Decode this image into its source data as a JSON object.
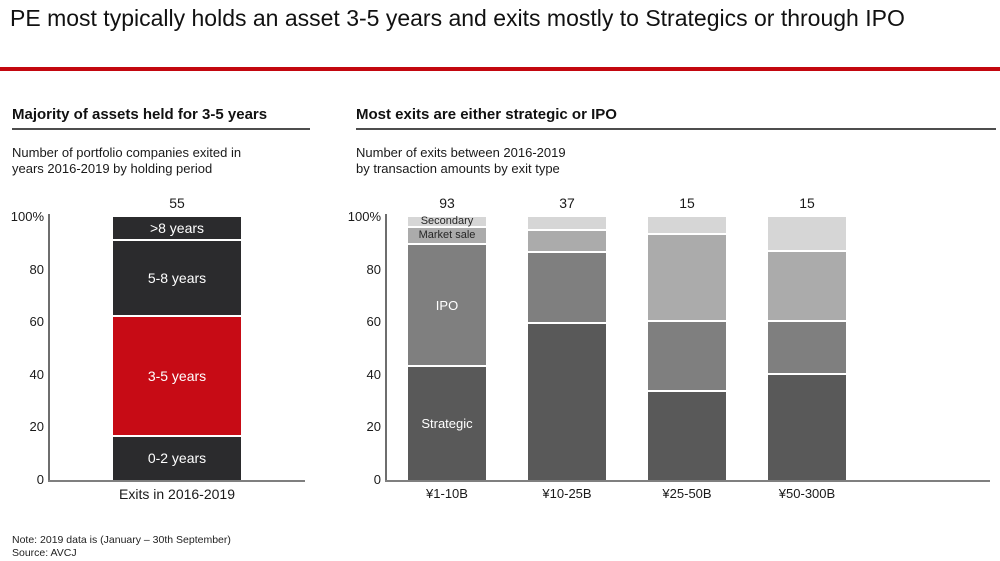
{
  "page": {
    "title": "PE most typically holds an asset 3-5 years and exits mostly to Strategics or through IPO",
    "accent_red": "#c3070f",
    "note": "Note: 2019 data is (January – 30th September)",
    "source": "Source: AVCJ"
  },
  "chart_data": [
    {
      "type": "bar",
      "stacked": true,
      "title": "Majority of assets held for 3-5 years",
      "subtitle_lines": [
        "Number of portfolio companies exited in",
        "years 2016-2019 by holding period"
      ],
      "xlabel": "",
      "ylabel": "",
      "ylim": [
        0,
        100
      ],
      "yticks": [
        "100%",
        "80",
        "60",
        "40",
        "20",
        "0"
      ],
      "grid": false,
      "legend_position": "labels-inside-bar",
      "categories": [
        "Exits in 2016-2019"
      ],
      "total_labels": [
        "55"
      ],
      "series": [
        {
          "name": "0-2 years",
          "values_pct": [
            16.4
          ],
          "color": "#2b2b2d",
          "label_color": "#ffffff"
        },
        {
          "name": "3-5 years",
          "values_pct": [
            45.4
          ],
          "color": "#c70b15",
          "label_color": "#ffffff"
        },
        {
          "name": "5-8 years",
          "values_pct": [
            29.1
          ],
          "color": "#2b2b2d",
          "label_color": "#ffffff"
        },
        {
          "name": ">8 years",
          "values_pct": [
            9.1
          ],
          "color": "#2b2b2d",
          "label_color": "#ffffff"
        }
      ]
    },
    {
      "type": "bar",
      "stacked": true,
      "title": "Most exits are either strategic or IPO",
      "subtitle_lines": [
        "Number of exits between 2016-2019",
        "by transaction amounts by exit type"
      ],
      "xlabel": "",
      "ylabel": "",
      "ylim": [
        0,
        100
      ],
      "yticks": [
        "100%",
        "80",
        "60",
        "40",
        "20",
        "0"
      ],
      "grid": false,
      "legend_position": "labels-inside-first-bar",
      "categories": [
        "¥1-10B",
        "¥10-25B",
        "¥25-50B",
        "¥50-300B"
      ],
      "total_labels": [
        "93",
        "37",
        "15",
        "15"
      ],
      "series": [
        {
          "name": "Strategic",
          "values_pct": [
            43.0,
            59.5,
            33.3,
            40.0
          ],
          "color": "#595959",
          "label_color": "#ffffff"
        },
        {
          "name": "IPO",
          "values_pct": [
            46.2,
            27.0,
            26.7,
            20.0
          ],
          "color": "#7f7f7f",
          "label_color": "#ffffff"
        },
        {
          "name": "Market sale",
          "values_pct": [
            6.5,
            8.1,
            33.3,
            26.7
          ],
          "color": "#ababab",
          "label_color": "#262626"
        },
        {
          "name": "Secondary",
          "values_pct": [
            4.3,
            5.4,
            6.7,
            13.3
          ],
          "color": "#d6d6d6",
          "label_color": "#262626"
        }
      ]
    }
  ]
}
